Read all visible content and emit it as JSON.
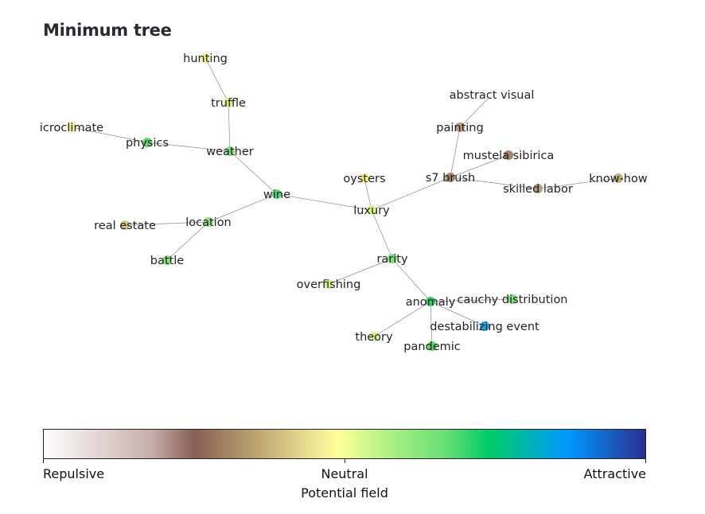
{
  "title": "Minimum tree",
  "nodes": [
    {
      "id": "hunting",
      "label": "hunting",
      "color": "#f3f088"
    },
    {
      "id": "truffle",
      "label": "truffle",
      "color": "#d4f28a"
    },
    {
      "id": "icroclimate",
      "label": "icroclimate",
      "color": "#f3f088"
    },
    {
      "id": "physics",
      "label": "physics",
      "color": "#5cd86e"
    },
    {
      "id": "weather",
      "label": "weather",
      "color": "#7ee07c"
    },
    {
      "id": "wine",
      "label": "wine",
      "color": "#5cd86e"
    },
    {
      "id": "real_estate",
      "label": "real estate",
      "color": "#d6c48a"
    },
    {
      "id": "location",
      "label": "location",
      "color": "#8fe07c"
    },
    {
      "id": "battle",
      "label": "battle",
      "color": "#8fe07c"
    },
    {
      "id": "oysters",
      "label": "oysters",
      "color": "#f3f088"
    },
    {
      "id": "luxury",
      "label": "luxury",
      "color": "#d4f28a"
    },
    {
      "id": "rarity",
      "label": "rarity",
      "color": "#7ee07c"
    },
    {
      "id": "overfishing",
      "label": "overfishing",
      "color": "#d4f28a"
    },
    {
      "id": "anomaly",
      "label": "anomaly",
      "color": "#2fd06a"
    },
    {
      "id": "cauchy",
      "label": "cauchy distribution",
      "color": "#7ee07c"
    },
    {
      "id": "destabilizing",
      "label": "destabilizing event",
      "color": "#1fa6e0"
    },
    {
      "id": "theory",
      "label": "theory",
      "color": "#d4f28a"
    },
    {
      "id": "pandemic",
      "label": "pandemic",
      "color": "#5cd86e"
    },
    {
      "id": "abstract_visual",
      "label": "abstract visual",
      "color": "#ffffff"
    },
    {
      "id": "painting",
      "label": "painting",
      "color": "#b89a86"
    },
    {
      "id": "mustela",
      "label": "mustela sibirica",
      "color": "#a78268"
    },
    {
      "id": "s7_brush",
      "label": "s7 brush",
      "color": "#a78268"
    },
    {
      "id": "skilled_labor",
      "label": "skilled labor",
      "color": "#b79f7a"
    },
    {
      "id": "know_how",
      "label": "know-how",
      "color": "#c3ad78"
    }
  ],
  "edges": [
    [
      "hunting",
      "truffle"
    ],
    [
      "truffle",
      "weather"
    ],
    [
      "icroclimate",
      "physics"
    ],
    [
      "physics",
      "weather"
    ],
    [
      "weather",
      "wine"
    ],
    [
      "wine",
      "location"
    ],
    [
      "location",
      "real_estate"
    ],
    [
      "location",
      "battle"
    ],
    [
      "wine",
      "luxury"
    ],
    [
      "oysters",
      "luxury"
    ],
    [
      "luxury",
      "rarity"
    ],
    [
      "rarity",
      "overfishing"
    ],
    [
      "rarity",
      "anomaly"
    ],
    [
      "anomaly",
      "cauchy"
    ],
    [
      "anomaly",
      "destabilizing"
    ],
    [
      "anomaly",
      "theory"
    ],
    [
      "anomaly",
      "pandemic"
    ],
    [
      "luxury",
      "s7_brush"
    ],
    [
      "s7_brush",
      "painting"
    ],
    [
      "painting",
      "abstract_visual"
    ],
    [
      "s7_brush",
      "mustela"
    ],
    [
      "s7_brush",
      "skilled_labor"
    ],
    [
      "skilled_labor",
      "know_how"
    ]
  ],
  "colorbar": {
    "label": "Potential field",
    "ticks": [
      "Repulsive",
      "Neutral",
      "Attractive"
    ]
  }
}
